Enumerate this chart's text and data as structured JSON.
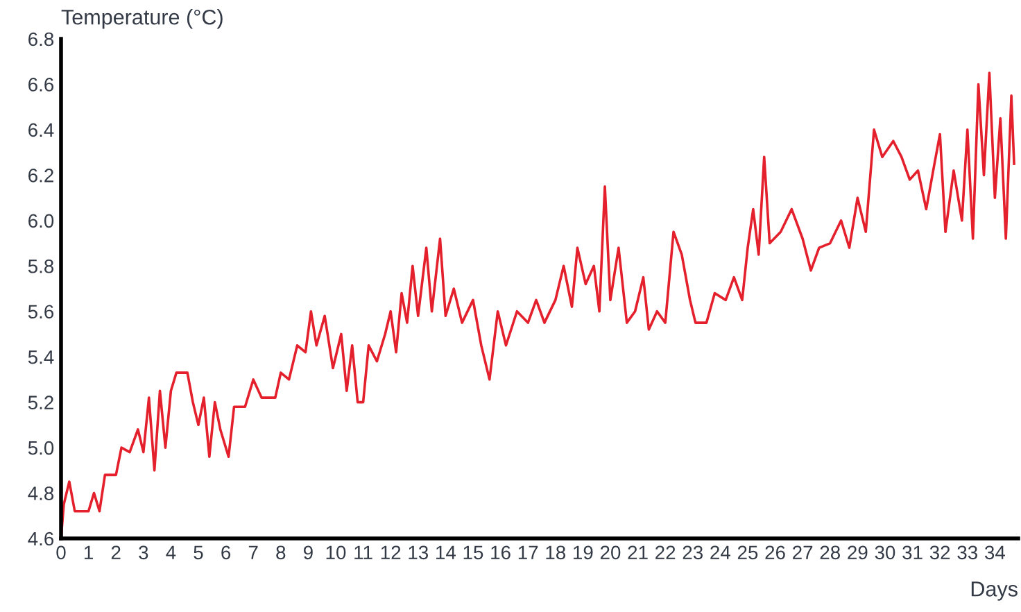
{
  "chart_data": {
    "type": "line",
    "xlabel": "Days",
    "ylabel": "Temperature (°C)",
    "xlim": [
      0,
      34.85
    ],
    "xticks": [
      0,
      1,
      2,
      3,
      4,
      5,
      6,
      7,
      8,
      9,
      10,
      11,
      12,
      13,
      14,
      15,
      16,
      17,
      18,
      19,
      20,
      21,
      22,
      23,
      24,
      25,
      26,
      27,
      28,
      29,
      30,
      31,
      32,
      33,
      34
    ],
    "ylim": [
      4.6,
      6.8
    ],
    "yticks": [
      4.6,
      4.8,
      {
        "value": 5.0,
        "label": "5.0"
      },
      5.2,
      5.4,
      5.6,
      5.8,
      {
        "value": 6.0,
        "label": "6.0"
      },
      6.2,
      6.4,
      6.6,
      6.8
    ],
    "grid": false,
    "legend": false,
    "marker": "none",
    "line_style": "solid",
    "series": [
      {
        "color": "#e3202c",
        "x": [
          0,
          0.1,
          0.3,
          0.5,
          1.0,
          1.2,
          1.4,
          1.6,
          2.0,
          2.2,
          2.5,
          2.8,
          3.0,
          3.2,
          3.4,
          3.6,
          3.8,
          4.0,
          4.2,
          4.6,
          4.8,
          5.0,
          5.2,
          5.4,
          5.6,
          5.8,
          6.1,
          6.3,
          6.7,
          7.0,
          7.3,
          7.8,
          8.0,
          8.3,
          8.6,
          8.9,
          9.1,
          9.3,
          9.6,
          9.9,
          10.2,
          10.4,
          10.6,
          10.8,
          11.0,
          11.2,
          11.5,
          11.8,
          12.0,
          12.2,
          12.4,
          12.6,
          12.8,
          13.0,
          13.3,
          13.5,
          13.8,
          14.0,
          14.3,
          14.6,
          15.0,
          15.3,
          15.6,
          15.9,
          16.2,
          16.6,
          17.0,
          17.3,
          17.6,
          18.0,
          18.3,
          18.6,
          18.8,
          19.1,
          19.4,
          19.6,
          19.8,
          20.0,
          20.3,
          20.6,
          20.9,
          21.2,
          21.4,
          21.7,
          22.0,
          22.3,
          22.6,
          22.9,
          23.1,
          23.5,
          23.8,
          24.2,
          24.5,
          24.8,
          25.0,
          25.2,
          25.4,
          25.6,
          25.8,
          26.2,
          26.6,
          27.0,
          27.3,
          27.6,
          28.0,
          28.4,
          28.7,
          29.0,
          29.3,
          29.6,
          29.9,
          30.3,
          30.6,
          30.9,
          31.2,
          31.5,
          31.8,
          32.0,
          32.2,
          32.5,
          32.8,
          33.0,
          33.2,
          33.4,
          33.6,
          33.8,
          34.0,
          34.2,
          34.4,
          34.6,
          34.7
        ],
        "values": [
          4.6,
          4.75,
          4.85,
          4.72,
          4.72,
          4.8,
          4.72,
          4.88,
          4.88,
          5.0,
          4.98,
          5.08,
          4.98,
          5.22,
          4.9,
          5.25,
          5.0,
          5.25,
          5.33,
          5.33,
          5.2,
          5.1,
          5.22,
          4.96,
          5.2,
          5.08,
          4.96,
          5.18,
          5.18,
          5.3,
          5.22,
          5.22,
          5.33,
          5.3,
          5.45,
          5.42,
          5.6,
          5.45,
          5.58,
          5.35,
          5.5,
          5.25,
          5.45,
          5.2,
          5.2,
          5.45,
          5.38,
          5.5,
          5.6,
          5.42,
          5.68,
          5.55,
          5.8,
          5.58,
          5.88,
          5.6,
          5.92,
          5.58,
          5.7,
          5.55,
          5.65,
          5.45,
          5.3,
          5.6,
          5.45,
          5.6,
          5.55,
          5.65,
          5.55,
          5.65,
          5.8,
          5.62,
          5.88,
          5.72,
          5.8,
          5.6,
          6.15,
          5.65,
          5.88,
          5.55,
          5.6,
          5.75,
          5.52,
          5.6,
          5.55,
          5.95,
          5.85,
          5.65,
          5.55,
          5.55,
          5.68,
          5.65,
          5.75,
          5.65,
          5.88,
          6.05,
          5.85,
          6.28,
          5.9,
          5.95,
          6.05,
          5.92,
          5.78,
          5.88,
          5.9,
          6.0,
          5.88,
          6.1,
          5.95,
          6.4,
          6.28,
          6.35,
          6.28,
          6.18,
          6.22,
          6.05,
          6.25,
          6.38,
          5.95,
          6.22,
          6.0,
          6.4,
          5.92,
          6.6,
          6.2,
          6.65,
          6.1,
          6.45,
          5.92,
          6.55,
          6.25
        ]
      }
    ]
  }
}
